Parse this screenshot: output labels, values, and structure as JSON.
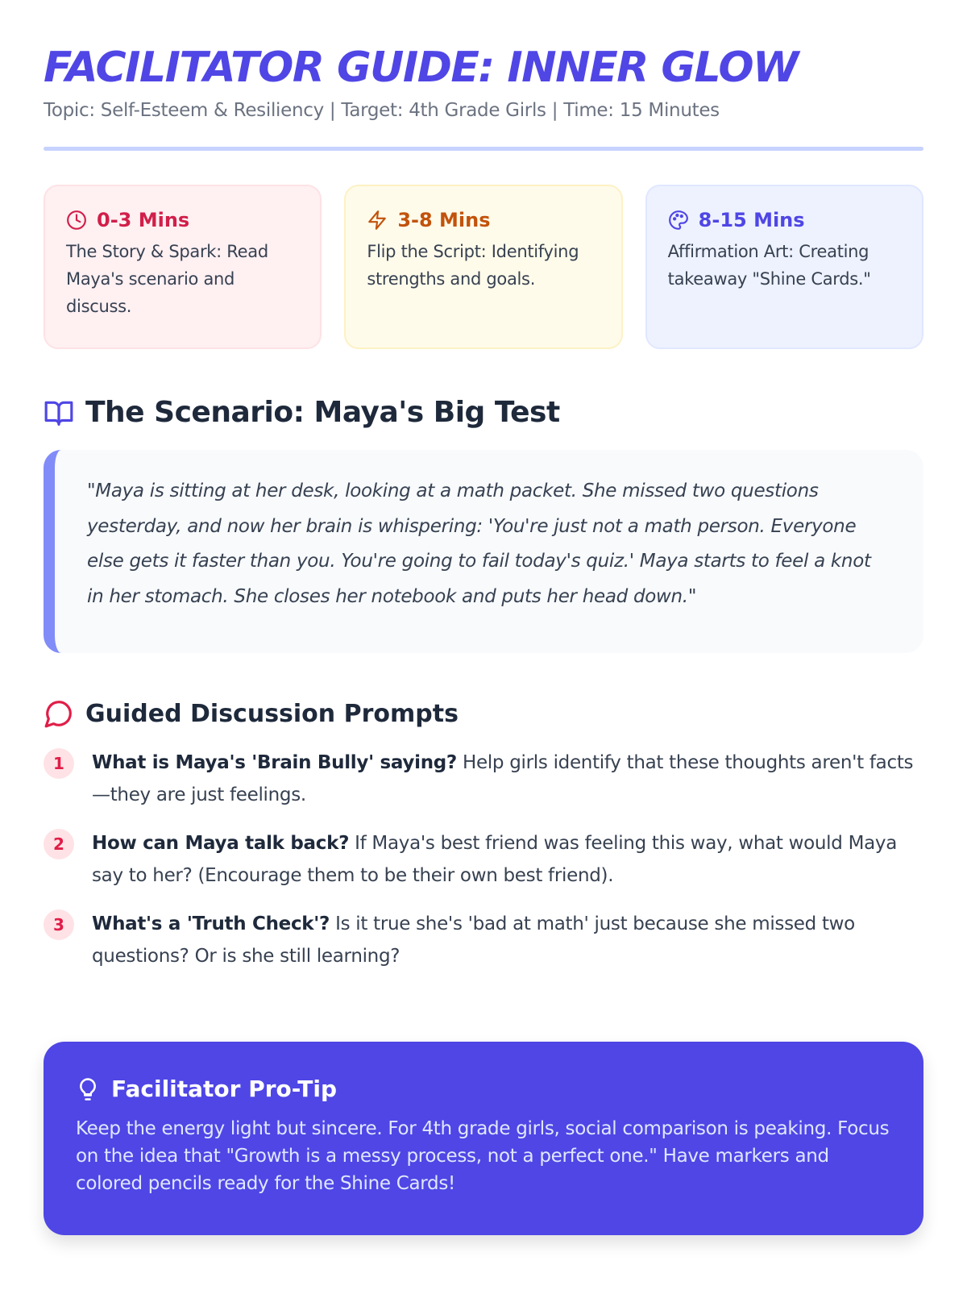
{
  "header": {
    "title": "FACILITATOR GUIDE: INNER GLOW",
    "subtitle": "Topic: Self-Esteem & Resiliency | Target: 4th Grade Girls | Time: 15 Minutes"
  },
  "timeline": [
    {
      "icon": "clock-icon",
      "time": "0-3 Mins",
      "desc": "The Story & Spark: Read Maya's scenario and discuss.",
      "color": "#d11f4a"
    },
    {
      "icon": "lightning-icon",
      "time": "3-8 Mins",
      "desc": "Flip the Script: Identifying strengths and goals.",
      "color": "#c2530c"
    },
    {
      "icon": "palette-icon",
      "time": "8-15 Mins",
      "desc": "Affirmation Art: Creating takeaway \"Shine Cards.\"",
      "color": "#4f46e5"
    }
  ],
  "scenario": {
    "heading": "The Scenario: Maya's Big Test",
    "quote": "\"Maya is sitting at her desk, looking at a math packet. She missed two questions yesterday, and now her brain is whispering: 'You're just not a math person. Everyone else gets it faster than you. You're going to fail today's quiz.' Maya starts to feel a knot in her stomach. She closes her notebook and puts her head down.\""
  },
  "discussion": {
    "heading": "Guided Discussion Prompts",
    "items": [
      {
        "num": "1",
        "q": "What is Maya's 'Brain Bully' saying?",
        "a": " Help girls identify that these thoughts aren't facts—they are just feelings."
      },
      {
        "num": "2",
        "q": "How can Maya talk back?",
        "a": " If Maya's best friend was feeling this way, what would Maya say to her? (Encourage them to be their own best friend)."
      },
      {
        "num": "3",
        "q": "What's a 'Truth Check'?",
        "a": " Is it true she's 'bad at math' just because she missed two questions? Or is she still learning?"
      }
    ]
  },
  "tip": {
    "heading": "Facilitator Pro-Tip",
    "text": "Keep the energy light but sincere. For 4th grade girls, social comparison is peaking. Focus on the idea that \"Growth is a messy process, not a perfect one.\" Have markers and colored pencils ready for the Shine Cards!"
  }
}
